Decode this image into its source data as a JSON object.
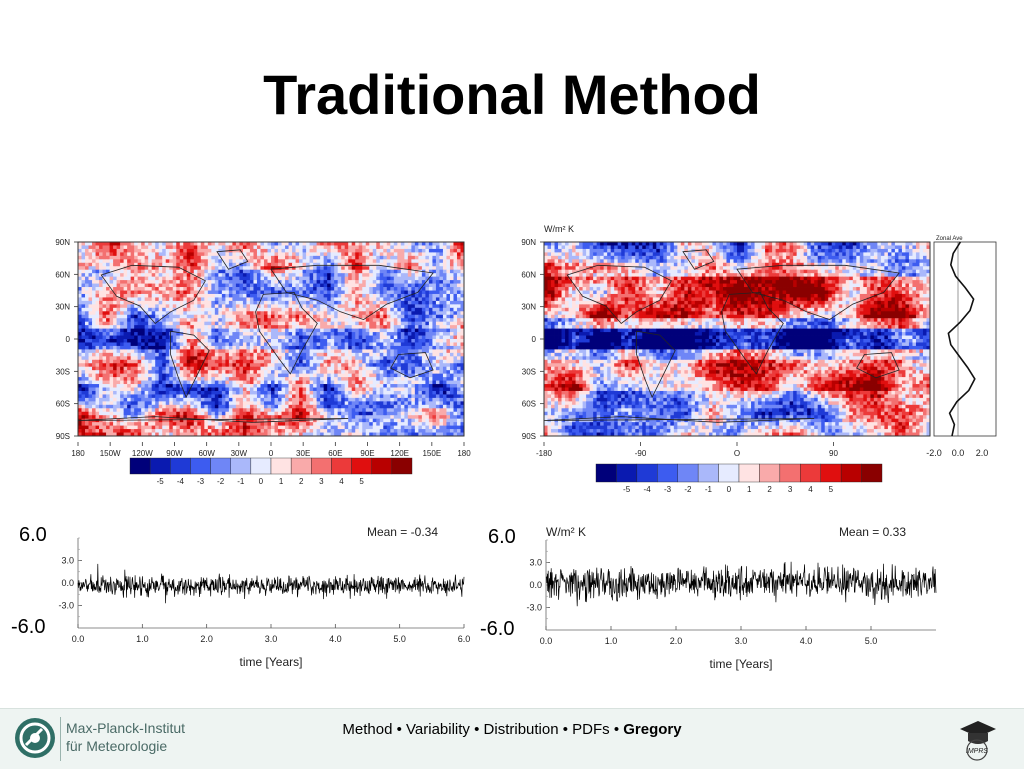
{
  "slide": {
    "title": "Traditional Method"
  },
  "left_map": {
    "lat_labels": [
      "90N",
      "60N",
      "30N",
      "0",
      "30S",
      "60S",
      "90S"
    ],
    "lon_labels": [
      "180",
      "150W",
      "120W",
      "90W",
      "60W",
      "30W",
      "0",
      "30E",
      "60E",
      "90E",
      "120E",
      "150E",
      "180"
    ],
    "colorbar_labels": [
      "-5",
      "-4",
      "-3",
      "-2",
      "-1",
      "0",
      "1",
      "2",
      "3",
      "4",
      "5"
    ]
  },
  "right_map": {
    "units": "W/m² K",
    "lat_labels": [
      "90N",
      "60N",
      "30N",
      "0",
      "30S",
      "60S",
      "90S"
    ],
    "lon_labels": [
      "-180",
      "-90",
      "O",
      "90"
    ],
    "zonal_title": "Zonal Ave",
    "zonal_ticks": [
      "-2.0",
      "0.0",
      "2.0"
    ],
    "colorbar_labels": [
      "-5",
      "-4",
      "-3",
      "-2",
      "-1",
      "0",
      "1",
      "2",
      "3",
      "4",
      "5"
    ]
  },
  "colorbar_colors": [
    "#00007a",
    "#0a1ab0",
    "#1f3ad6",
    "#3d5cf0",
    "#6f86f6",
    "#aab8fa",
    "#e6ebff",
    "#ffe3e3",
    "#f9aaaa",
    "#f37070",
    "#ec3a3a",
    "#e00f0f",
    "#b80000",
    "#8a0000"
  ],
  "left_timeseries": {
    "y_top_label": "6.0",
    "y_bottom_label": "-6.0",
    "mean_label": "Mean = -0.34",
    "x_label": "time [Years]"
  },
  "right_timeseries": {
    "y_top_label": "6.0",
    "y_bottom_label": "-6.0",
    "units": "W/m² K",
    "mean_label": "Mean = 0.33",
    "x_label": "time [Years]"
  },
  "chart_data": [
    {
      "type": "line",
      "title": "",
      "xlabel": "time [Years]",
      "ylabel": "",
      "xlim": [
        0,
        6.0
      ],
      "ylim": [
        -6.0,
        6.0
      ],
      "x_ticks": [
        "0.0",
        "1.0",
        "2.0",
        "3.0",
        "4.0",
        "5.0",
        "6.0"
      ],
      "y_ticks": [
        "3.0",
        "0.0",
        "-3.0"
      ],
      "annotation": "Mean = -0.34",
      "series": [
        {
          "mean": -0.34,
          "amplitude": 1.1
        }
      ]
    },
    {
      "type": "line",
      "title": "",
      "xlabel": "time [Years]",
      "ylabel": "W/m² K",
      "xlim": [
        0,
        6.0
      ],
      "ylim": [
        -6.0,
        6.0
      ],
      "x_ticks": [
        "0.0",
        "1.0",
        "2.0",
        "3.0",
        "4.0",
        "5.0"
      ],
      "y_ticks": [
        "3.0",
        "0.0",
        "-3.0"
      ],
      "annotation": "Mean = 0.33",
      "series": [
        {
          "mean": 0.33,
          "amplitude": 1.7
        }
      ]
    }
  ],
  "footer": {
    "institute_line1": "Max-Planck-Institut",
    "institute_line2": "für Meteorologie",
    "nav_items": [
      "Method",
      "Variability",
      "Distribution",
      "PDFs"
    ],
    "nav_separator": " • ",
    "nav_active": "Gregory",
    "imprs_label": "IMPRS"
  }
}
